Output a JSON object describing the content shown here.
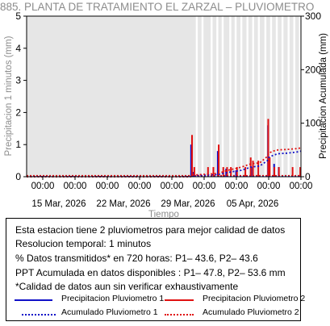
{
  "chart_data": {
    "type": "bar",
    "title": "885. PLANTA DE TRATAMIENTO EL ZARZAL – PLUVIOMETRO",
    "xlabel": "Tiempo",
    "ylabel_left": "Precipitacion 1 minutos (mm)",
    "ylabel_right": "Precipitacion Acumulada (mm)",
    "ylim_left": [
      0,
      5
    ],
    "ylim_right": [
      0,
      300
    ],
    "left_ticks": [
      "0",
      "1",
      "2",
      "3",
      "4",
      "5"
    ],
    "right_ticks": [
      "0",
      "100",
      "200",
      "300"
    ],
    "x_range_days": [
      "2026-03-11",
      "2026-04-10"
    ],
    "x_tick_labels": [
      "00:00",
      "00:00",
      "00:00",
      "00:00",
      "00:00",
      "00:00",
      "00:00",
      "00:00",
      "00:00"
    ],
    "date_labels": [
      "15 Mar, 2026",
      "22 Mar, 2026",
      "29 Mar, 2026",
      "05 Apr, 2026"
    ],
    "grid": false,
    "background": "#e6e6e6",
    "missing_data_gaps": [
      "03-29 12:00",
      "03-30 03:00",
      "03-31 03:00",
      "03-31 18:00",
      "04-01 08:00",
      "04-02 04:00",
      "04-02 18:00",
      "04-03 09:00",
      "04-04 01:00",
      "04-04 16:00",
      "04-05 07:00",
      "04-06 00:00",
      "04-06 15:00",
      "04-07 06:00",
      "04-07 21:00",
      "04-08 13:00",
      "04-09 04:00",
      "04-09 19:00"
    ],
    "series": [
      {
        "name": "Precipitacion Pluviometro 1",
        "color": "#1010c8",
        "style": "bars",
        "points": [
          [
            "03-29 00:00",
            1.0
          ],
          [
            "03-29 06:00",
            0.15
          ],
          [
            "03-31 22:00",
            0.8
          ],
          [
            "04-01 20:00",
            0.25
          ],
          [
            "04-02 22:00",
            0.2
          ],
          [
            "04-04 14:00",
            0.3
          ],
          [
            "04-06 10:00",
            1.6
          ],
          [
            "04-07 02:00",
            0.4
          ],
          [
            "04-07 14:00",
            0.3
          ]
        ]
      },
      {
        "name": "Precipitacion Pluviometro 2",
        "color": "#e01010",
        "style": "bars",
        "points": [
          [
            "03-29 00:00",
            1.3
          ],
          [
            "03-29 06:00",
            0.3
          ],
          [
            "03-30 18:00",
            0.3
          ],
          [
            "03-31 08:00",
            0.3
          ],
          [
            "03-31 22:00",
            1.0
          ],
          [
            "04-01 10:00",
            0.3
          ],
          [
            "04-01 20:00",
            0.3
          ],
          [
            "04-02 06:00",
            0.3
          ],
          [
            "04-02 22:00",
            0.3
          ],
          [
            "04-03 20:00",
            0.3
          ],
          [
            "04-04 10:00",
            0.6
          ],
          [
            "04-04 16:00",
            0.5
          ],
          [
            "04-05 06:00",
            0.5
          ],
          [
            "04-06 08:00",
            1.8
          ],
          [
            "04-06 12:00",
            0.6
          ],
          [
            "04-07 00:00",
            0.3
          ],
          [
            "04-07 12:00",
            0.3
          ],
          [
            "04-09 00:00",
            0.3
          ],
          [
            "04-09 20:00",
            0.3
          ]
        ]
      },
      {
        "name": "Acumulado Pluviometro 1",
        "color": "#1010c8",
        "style": "dotted",
        "axis": "right",
        "points": [
          [
            "03-11 00:00",
            0
          ],
          [
            "03-28 22:00",
            0
          ],
          [
            "03-29 00:00",
            2
          ],
          [
            "03-31 22:00",
            4
          ],
          [
            "04-02 00:00",
            8
          ],
          [
            "04-03 12:00",
            12
          ],
          [
            "04-04 12:00",
            18
          ],
          [
            "04-05 12:00",
            20
          ],
          [
            "04-06 08:00",
            30
          ],
          [
            "04-06 12:00",
            36
          ],
          [
            "04-06 23:00",
            40
          ],
          [
            "04-07 12:00",
            43
          ],
          [
            "04-08 12:00",
            44
          ],
          [
            "04-09 12:00",
            46
          ],
          [
            "04-10 00:00",
            47.8
          ]
        ]
      },
      {
        "name": "Acumulado Pluviometro 2",
        "color": "#e01010",
        "style": "dotted",
        "axis": "right",
        "points": [
          [
            "03-11 00:00",
            0
          ],
          [
            "03-28 22:00",
            0
          ],
          [
            "03-29 00:00",
            3
          ],
          [
            "03-31 22:00",
            6
          ],
          [
            "04-02 00:00",
            12
          ],
          [
            "04-03 12:00",
            18
          ],
          [
            "04-04 12:00",
            24
          ],
          [
            "04-05 12:00",
            26
          ],
          [
            "04-06 08:00",
            38
          ],
          [
            "04-06 12:00",
            44
          ],
          [
            "04-06 23:00",
            48
          ],
          [
            "04-07 12:00",
            50
          ],
          [
            "04-08 12:00",
            51
          ],
          [
            "04-09 12:00",
            52.5
          ],
          [
            "04-10 00:00",
            53.6
          ]
        ]
      }
    ]
  },
  "info": {
    "lines": [
      "Esta estacion tiene 2 pluviometros para mejor calidad de datos",
      "Resolucion temporal: 1 minutos",
      "% Datos transmitidos* en 720 horas: P1– 43.6, P2– 43.6",
      "PPT Acumulada en datos disponibles : P1– 47.8, P2– 53.6 mm",
      "*Calidad de datos aun sin verificar exhaustivamente"
    ],
    "legend": [
      {
        "label": "Precipitacion Pluviometro 1",
        "color": "#1010c8",
        "dash": "solid"
      },
      {
        "label": "Precipitacion Pluviometro 2",
        "color": "#e01010",
        "dash": "solid"
      },
      {
        "label": "Acumulado Pluviometro 1",
        "color": "#1010c8",
        "dash": "dotted"
      },
      {
        "label": "Acumulado Pluviometro 2",
        "color": "#e01010",
        "dash": "dotted"
      }
    ]
  }
}
